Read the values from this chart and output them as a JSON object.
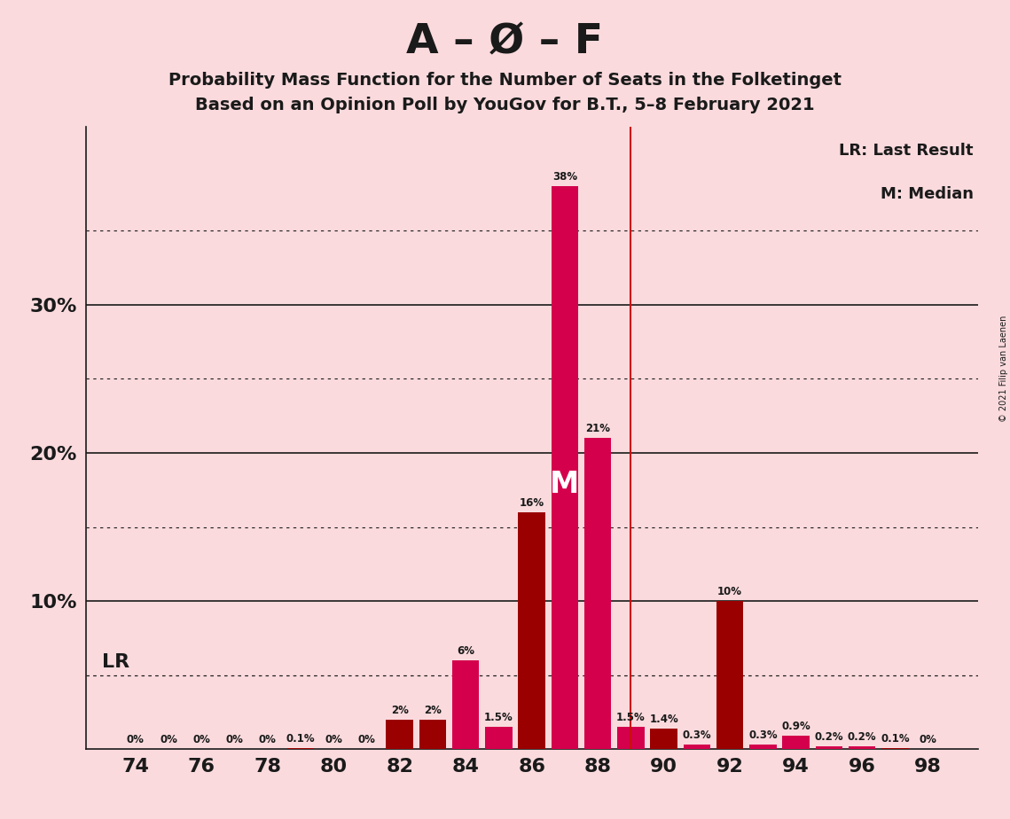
{
  "title_main": "A – Ø – F",
  "title_sub1": "Probability Mass Function for the Number of Seats in the Folketinget",
  "title_sub2": "Based on an Opinion Poll by YouGov for B.T., 5–8 February 2021",
  "copyright": "© 2021 Filip van Laenen",
  "seats": [
    74,
    75,
    76,
    77,
    78,
    79,
    80,
    81,
    82,
    83,
    84,
    85,
    86,
    87,
    88,
    89,
    90,
    91,
    92,
    93,
    94,
    95,
    96,
    97,
    98
  ],
  "probabilities": [
    0.0,
    0.0,
    0.0,
    0.0,
    0.0,
    0.1,
    0.0,
    0.0,
    2.0,
    2.0,
    6.0,
    1.5,
    16.0,
    38.0,
    21.0,
    1.5,
    1.4,
    0.3,
    10.0,
    0.3,
    0.9,
    0.2,
    0.2,
    0.1,
    0.0
  ],
  "labels": [
    "0%",
    "0%",
    "0%",
    "0%",
    "0%",
    "0.1%",
    "0%",
    "0%",
    "2%",
    "2%",
    "6%",
    "1.5%",
    "16%",
    "38%",
    "21%",
    "1.5%",
    "1.4%",
    "0.3%",
    "10%",
    "0.3%",
    "0.9%",
    "0.2%",
    "0.2%",
    "0.1%",
    "0%"
  ],
  "color_dark": "#9B0000",
  "color_light": "#D4004C",
  "bar_color_map": [
    "dark",
    "dark",
    "dark",
    "dark",
    "dark",
    "dark",
    "dark",
    "dark",
    "dark",
    "dark",
    "light",
    "light",
    "dark",
    "light",
    "light",
    "light",
    "dark",
    "light",
    "dark",
    "light",
    "light",
    "light",
    "light",
    "dark",
    "dark"
  ],
  "median_seat": 87,
  "last_result_seat": 89,
  "background_color": "#FADADD",
  "solid_gridlines": [
    10,
    20,
    30
  ],
  "dotted_gridlines": [
    5,
    15,
    25,
    35
  ],
  "xlabel_ticks": [
    74,
    76,
    78,
    80,
    82,
    84,
    86,
    88,
    90,
    92,
    94,
    96,
    98
  ],
  "xlim": [
    72.5,
    99.5
  ],
  "ylim": [
    0,
    42
  ]
}
